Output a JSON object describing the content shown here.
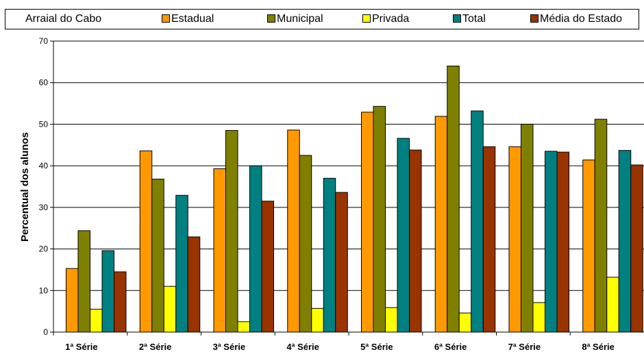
{
  "chart_data": {
    "type": "bar",
    "title": "Arraial do Cabo",
    "ylabel": "Percentual dos alunos",
    "xlabel": "",
    "ylim": [
      0,
      70
    ],
    "yticks": [
      0,
      10,
      20,
      30,
      40,
      50,
      60,
      70
    ],
    "grid": true,
    "legend_position": "top",
    "categories": [
      "1ª Série",
      "2ª Série",
      "3ª Série",
      "4ª Série",
      "5ª Série",
      "6ª Série",
      "7ª Série",
      "8ª Série"
    ],
    "series": [
      {
        "name": "Estadual",
        "color": "#FF9900",
        "values": [
          15.3,
          43.6,
          39.3,
          48.6,
          52.9,
          51.9,
          44.6,
          41.4
        ]
      },
      {
        "name": "Municipal",
        "color": "#808000",
        "values": [
          24.4,
          36.8,
          48.5,
          42.5,
          54.3,
          64.0,
          50.0,
          51.2
        ]
      },
      {
        "name": "Privada",
        "color": "#FFFF00",
        "values": [
          5.5,
          11.0,
          2.5,
          5.7,
          5.9,
          4.6,
          7.1,
          13.2
        ]
      },
      {
        "name": "Total",
        "color": "#008080",
        "values": [
          19.6,
          32.9,
          40.0,
          37.0,
          46.6,
          53.2,
          43.5,
          43.7
        ]
      },
      {
        "name": "Média do Estado",
        "color": "#993300",
        "values": [
          14.5,
          22.9,
          31.5,
          33.6,
          43.8,
          44.6,
          43.3,
          40.2
        ]
      }
    ]
  }
}
